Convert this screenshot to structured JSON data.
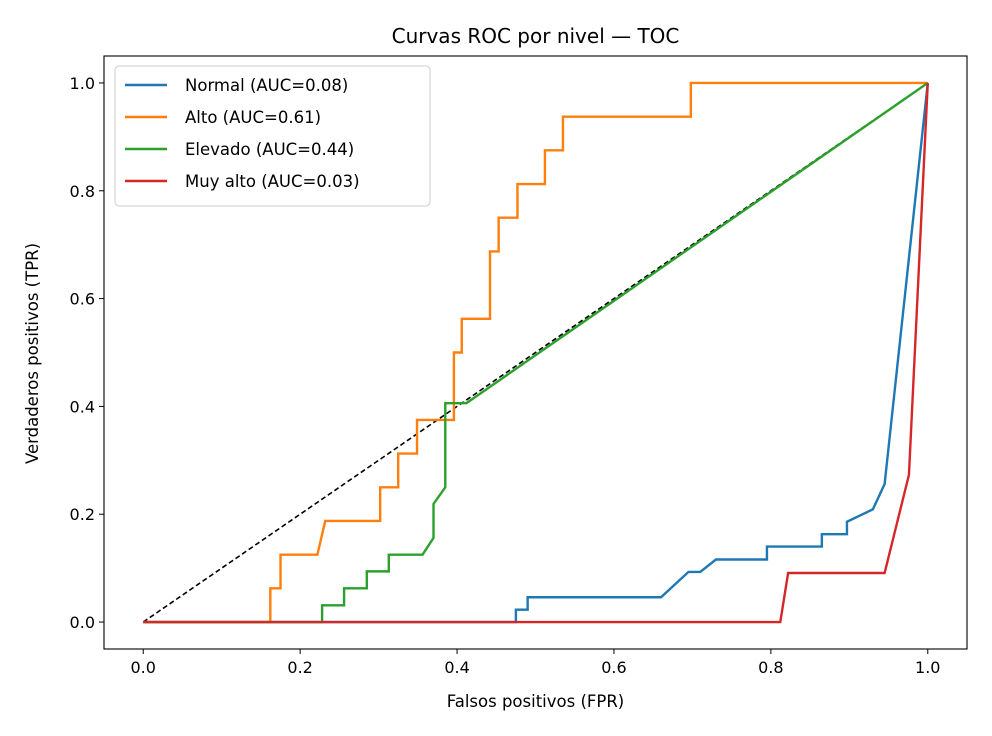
{
  "chart_data": {
    "type": "line",
    "title": "Curvas ROC por nivel — TOC",
    "xlabel": "Falsos positivos (FPR)",
    "ylabel": "Verdaderos positivos (TPR)",
    "xlim": [
      -0.05,
      1.05
    ],
    "ylim": [
      -0.05,
      1.05
    ],
    "xticks": [
      0.0,
      0.2,
      0.4,
      0.6,
      0.8,
      1.0
    ],
    "yticks": [
      0.0,
      0.2,
      0.4,
      0.6,
      0.8,
      1.0
    ],
    "xtick_labels": [
      "0.0",
      "0.2",
      "0.4",
      "0.6",
      "0.8",
      "1.0"
    ],
    "ytick_labels": [
      "0.0",
      "0.2",
      "0.4",
      "0.6",
      "0.8",
      "1.0"
    ],
    "grid": false,
    "legend_position": "top-left",
    "diagonal": {
      "x": [
        0,
        1
      ],
      "y": [
        0,
        1
      ],
      "color": "#000000",
      "style": "dashed"
    },
    "series": [
      {
        "name": "Normal (AUC=0.08)",
        "color": "#1f77b4",
        "x": [
          0.0,
          0.475,
          0.475,
          0.49,
          0.49,
          0.66,
          0.695,
          0.71,
          0.73,
          0.795,
          0.795,
          0.865,
          0.865,
          0.897,
          0.897,
          0.93,
          0.945,
          1.0
        ],
        "y": [
          0.0,
          0.0,
          0.023,
          0.023,
          0.046,
          0.046,
          0.093,
          0.093,
          0.116,
          0.116,
          0.14,
          0.14,
          0.163,
          0.163,
          0.186,
          0.209,
          0.256,
          1.0
        ]
      },
      {
        "name": "Alto (AUC=0.61)",
        "color": "#ff7f0e",
        "x": [
          0.0,
          0.162,
          0.162,
          0.175,
          0.175,
          0.222,
          0.232,
          0.302,
          0.302,
          0.325,
          0.325,
          0.349,
          0.349,
          0.396,
          0.396,
          0.406,
          0.406,
          0.442,
          0.442,
          0.453,
          0.453,
          0.477,
          0.477,
          0.512,
          0.512,
          0.535,
          0.535,
          0.698,
          0.698,
          1.0
        ],
        "y": [
          0.0,
          0.0,
          0.0625,
          0.0625,
          0.125,
          0.125,
          0.1875,
          0.1875,
          0.25,
          0.25,
          0.3125,
          0.3125,
          0.375,
          0.375,
          0.5,
          0.5,
          0.5625,
          0.5625,
          0.6875,
          0.6875,
          0.75,
          0.75,
          0.8125,
          0.8125,
          0.875,
          0.875,
          0.9375,
          0.9375,
          1.0,
          1.0
        ]
      },
      {
        "name": "Elevado (AUC=0.44)",
        "color": "#2ca02c",
        "x": [
          0.0,
          0.228,
          0.228,
          0.256,
          0.256,
          0.285,
          0.285,
          0.313,
          0.313,
          0.356,
          0.37,
          0.37,
          0.385,
          0.385,
          0.412,
          1.0
        ],
        "y": [
          0.0,
          0.0,
          0.031,
          0.031,
          0.0625,
          0.0625,
          0.094,
          0.094,
          0.125,
          0.125,
          0.156,
          0.219,
          0.25,
          0.406,
          0.406,
          1.0
        ]
      },
      {
        "name": "Muy alto (AUC=0.03)",
        "color": "#d62728",
        "x": [
          0.0,
          0.812,
          0.822,
          0.945,
          0.976,
          1.0
        ],
        "y": [
          0.0,
          0.0,
          0.091,
          0.091,
          0.273,
          1.0
        ]
      }
    ]
  }
}
